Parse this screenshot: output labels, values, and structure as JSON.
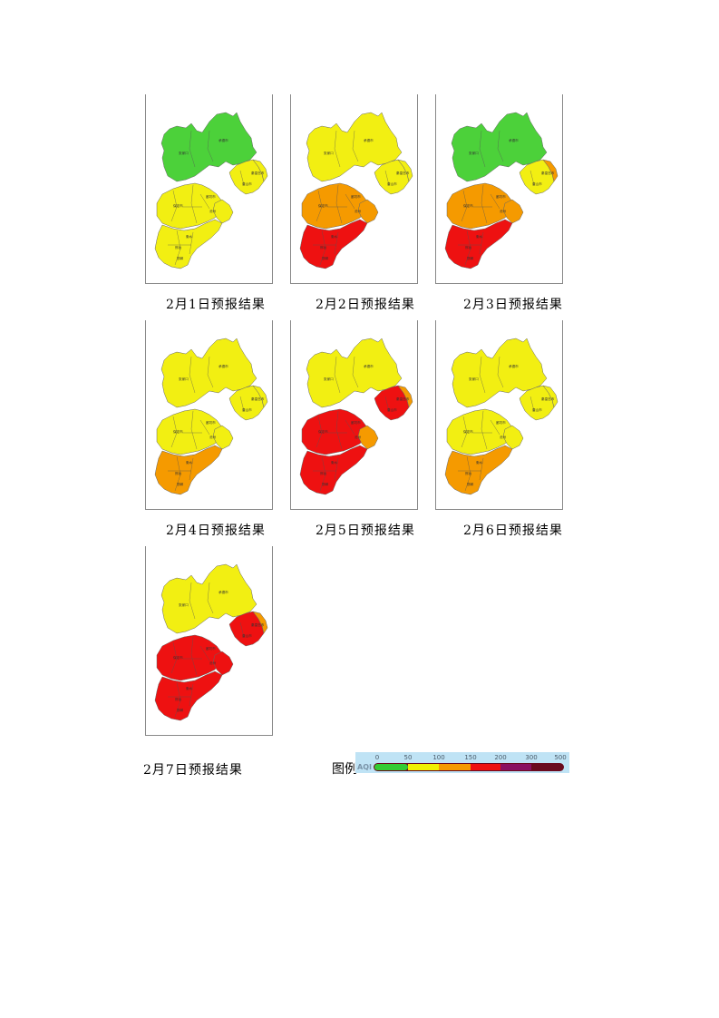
{
  "colors": {
    "aqi_0_50": "#33cc33",
    "aqi_50_100": "#f0f000",
    "aqi_100_150": "#f59a00",
    "aqi_150_200": "#ee1111",
    "aqi_200_300": "#8a1060",
    "aqi_300_500": "#6a0a1e",
    "border": "#666666"
  },
  "maps": [
    {
      "caption": "2月1日预报结果",
      "regions": {
        "north": "#4cd13a",
        "east": "#f2ef12",
        "east_tip": "#f2ef12",
        "central": "#f2ef12",
        "tianjin": "#f2ef12",
        "south": "#f2ef12"
      },
      "labels": {
        "north_a": "张家口",
        "north_b": "承德市",
        "east_a": "秦皇岛市",
        "east_b": "唐山市",
        "central_a": "保定市",
        "central_b": "廊坊市",
        "central_c": "沧州",
        "south_a": "衡水",
        "south_b": "邢台",
        "south_c": "邯郸"
      }
    },
    {
      "caption": "2月2日预报结果",
      "regions": {
        "north": "#f2ef12",
        "east": "#f2ef12",
        "east_tip": "#f2ef12",
        "central": "#f59a00",
        "tianjin": "#f59a00",
        "south": "#ee1111"
      },
      "labels": {
        "north_a": "张家口",
        "north_b": "承德市",
        "east_a": "秦皇岛市",
        "east_b": "唐山市",
        "central_a": "保定市",
        "central_b": "廊坊市",
        "central_c": "沧州",
        "south_a": "衡水",
        "south_b": "邢台",
        "south_c": "邯郸"
      }
    },
    {
      "caption": "2月3日预报结果",
      "regions": {
        "north": "#4cd13a",
        "east": "#f2ef12",
        "east_tip": "#f59a00",
        "central": "#f59a00",
        "tianjin": "#f59a00",
        "south": "#ee1111"
      },
      "labels": {
        "north_a": "张家口",
        "north_b": "承德市",
        "east_a": "秦皇岛市",
        "east_b": "唐山市",
        "central_a": "保定市",
        "central_b": "廊坊市",
        "central_c": "沧州",
        "south_a": "衡水",
        "south_b": "邢台",
        "south_c": "邯郸"
      }
    },
    {
      "caption": "2月4日预报结果",
      "regions": {
        "north": "#f2ef12",
        "east": "#f2ef12",
        "east_tip": "#f2ef12",
        "central": "#f2ef12",
        "tianjin": "#f2ef12",
        "south": "#f59a00"
      },
      "labels": {
        "north_a": "张家口",
        "north_b": "承德市",
        "east_a": "秦皇岛市",
        "east_b": "唐山市",
        "central_a": "保定市",
        "central_b": "廊坊市",
        "central_c": "沧州",
        "south_a": "衡水",
        "south_b": "邢台",
        "south_c": "邯郸"
      }
    },
    {
      "caption": "2月5日预报结果",
      "regions": {
        "north": "#f2ef12",
        "east": "#ee1111",
        "east_tip": "#f59a00",
        "central": "#ee1111",
        "tianjin": "#f59a00",
        "south": "#ee1111"
      },
      "labels": {
        "north_a": "张家口",
        "north_b": "承德市",
        "east_a": "秦皇岛市",
        "east_b": "唐山市",
        "central_a": "保定市",
        "central_b": "廊坊市",
        "central_c": "沧州",
        "south_a": "衡水",
        "south_b": "邢台",
        "south_c": "邯郸"
      }
    },
    {
      "caption": "2月6日预报结果",
      "regions": {
        "north": "#f2ef12",
        "east": "#f2ef12",
        "east_tip": "#f2ef12",
        "central": "#f2ef12",
        "tianjin": "#f2ef12",
        "south": "#f59a00"
      },
      "labels": {
        "north_a": "张家口",
        "north_b": "承德市",
        "east_a": "秦皇岛市",
        "east_b": "唐山市",
        "central_a": "保定市",
        "central_b": "廊坊市",
        "central_c": "沧州",
        "south_a": "衡水",
        "south_b": "邢台",
        "south_c": "邯郸"
      }
    },
    {
      "caption": "2月7日预报结果",
      "regions": {
        "north": "#f2ef12",
        "east": "#ee1111",
        "east_tip": "#f59a00",
        "central": "#ee1111",
        "tianjin": "#ee1111",
        "south": "#ee1111"
      },
      "labels": {
        "north_a": "张家口",
        "north_b": "承德市",
        "east_a": "秦皇岛市",
        "east_b": "唐山市",
        "central_a": "保定市",
        "central_b": "廊坊市",
        "central_c": "沧州",
        "south_a": "衡水",
        "south_b": "邢台",
        "south_c": "邯郸"
      }
    }
  ],
  "legend": {
    "label": "图例",
    "aqi_text": "AQI",
    "ticks": [
      "0",
      "50",
      "100",
      "150",
      "200",
      "300",
      "500"
    ]
  }
}
